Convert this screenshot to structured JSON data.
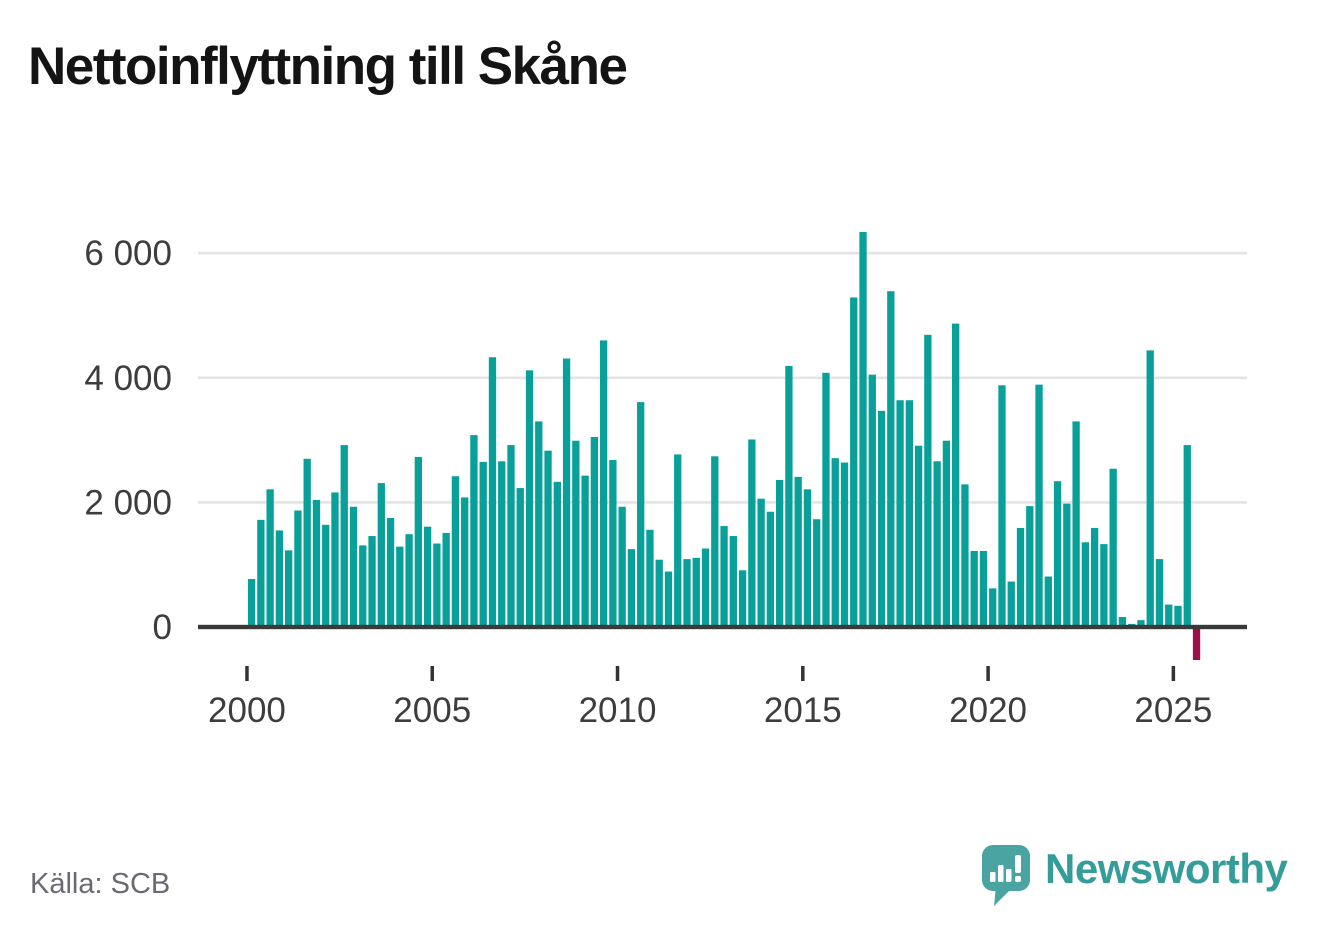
{
  "title": "Nettoinflyttning till Skåne",
  "source_label": "Källa: SCB",
  "brand": {
    "name": "Newsworthy"
  },
  "colors": {
    "positive_bar": "#08a098",
    "negative_bar": "#9b1048",
    "gridline": "#e4e4e4",
    "axis_line": "#3a3a3a",
    "axis_text": "#3d3d3d",
    "tick_mark": "#333333",
    "title_text": "#141414",
    "source_text": "#6a6a73",
    "logo_teal": "#4aa5a2",
    "wordmark_teal": "#349c99"
  },
  "chart_data": {
    "type": "bar",
    "title": "Nettoinflyttning till Skåne",
    "source": "Källa: SCB",
    "frequency": "quarterly",
    "first_period": "2000 Q1",
    "last_period": "2025 Q3",
    "xlabel": "",
    "ylabel": "",
    "ylim": [
      -700,
      6600
    ],
    "grid": "horizontal",
    "legend": "none",
    "negative_period": "2025 Q3",
    "y_axis": {
      "ticks": [
        {
          "value": 0,
          "label": "0"
        },
        {
          "value": 2000,
          "label": "2 000"
        },
        {
          "value": 4000,
          "label": "4 000"
        },
        {
          "value": 6000,
          "label": "6 000"
        }
      ]
    },
    "x_axis": {
      "tick_years": [
        "2000",
        "2005",
        "2010",
        "2015",
        "2020",
        "2025"
      ]
    },
    "series_by_year": [
      {
        "year": "2000",
        "values": [
          770,
          1720,
          2210,
          1550
        ]
      },
      {
        "year": "2001",
        "values": [
          1230,
          1870,
          2700,
          2040
        ]
      },
      {
        "year": "2002",
        "values": [
          1640,
          2160,
          2920,
          1930
        ]
      },
      {
        "year": "2003",
        "values": [
          1310,
          1460,
          2310,
          1750
        ]
      },
      {
        "year": "2004",
        "values": [
          1290,
          1490,
          2730,
          1610
        ]
      },
      {
        "year": "2005",
        "values": [
          1340,
          1510,
          2420,
          2080
        ]
      },
      {
        "year": "2006",
        "values": [
          3080,
          2650,
          4330,
          2660
        ]
      },
      {
        "year": "2007",
        "values": [
          2920,
          2230,
          4120,
          3300
        ]
      },
      {
        "year": "2008",
        "values": [
          2830,
          2330,
          4310,
          2990
        ]
      },
      {
        "year": "2009",
        "values": [
          2430,
          3050,
          4600,
          2680
        ]
      },
      {
        "year": "2010",
        "values": [
          1930,
          1250,
          3610,
          1560
        ]
      },
      {
        "year": "2011",
        "values": [
          1080,
          890,
          2770,
          1090
        ]
      },
      {
        "year": "2012",
        "values": [
          1110,
          1260,
          2740,
          1620
        ]
      },
      {
        "year": "2013",
        "values": [
          1460,
          910,
          3010,
          2060
        ]
      },
      {
        "year": "2014",
        "values": [
          1850,
          2360,
          4190,
          2410
        ]
      },
      {
        "year": "2015",
        "values": [
          2210,
          1730,
          4080,
          2710
        ]
      },
      {
        "year": "2016",
        "values": [
          2640,
          5290,
          6340,
          4050
        ]
      },
      {
        "year": "2017",
        "values": [
          3470,
          5390,
          3640,
          3640
        ]
      },
      {
        "year": "2018",
        "values": [
          2910,
          4690,
          2660,
          2990
        ]
      },
      {
        "year": "2019",
        "values": [
          4870,
          2290,
          1220,
          1220
        ]
      },
      {
        "year": "2020",
        "values": [
          620,
          3880,
          730,
          1590
        ]
      },
      {
        "year": "2021",
        "values": [
          1940,
          3890,
          810,
          2340
        ]
      },
      {
        "year": "2022",
        "values": [
          1980,
          3300,
          1360,
          1590
        ]
      },
      {
        "year": "2023",
        "values": [
          1330,
          2540,
          160,
          50
        ]
      },
      {
        "year": "2024",
        "values": [
          110,
          4440,
          1090,
          360
        ]
      },
      {
        "year": "2025",
        "values": [
          340,
          2920,
          -530
        ]
      }
    ]
  }
}
